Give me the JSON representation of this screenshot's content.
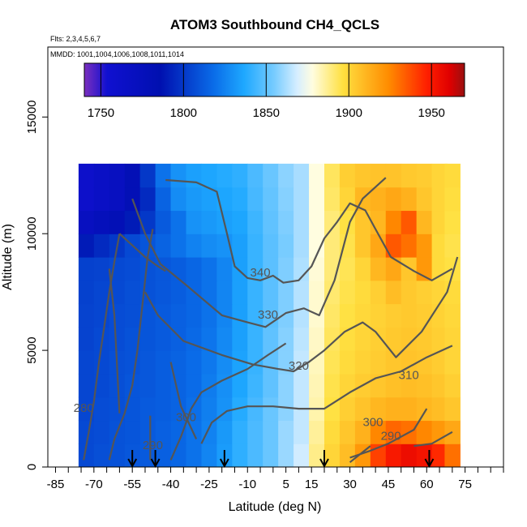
{
  "chart_data": {
    "type": "heatmap",
    "title": "ATOM3 Southbound CH4_QCLS",
    "flights_note": "Flts: 2,3,4,5,6,7",
    "dates_note": "MMDD: 1001,1004,1006,1008,1011,1014",
    "xlabel": "Latitude (deg N)",
    "ylabel": "Altitude (m)",
    "xlim": [
      -88,
      90
    ],
    "ylim": [
      0,
      18000
    ],
    "x_ticks": [
      -85,
      -70,
      -55,
      -40,
      -25,
      -10,
      5,
      15,
      30,
      45,
      60,
      75
    ],
    "y_ticks": [
      0,
      5000,
      10000,
      15000
    ],
    "colorbar": {
      "range": [
        1740,
        1970
      ],
      "ticks": [
        1750,
        1800,
        1850,
        1900,
        1950
      ]
    },
    "field": {
      "lat_bins": [
        -73,
        -67,
        -61,
        -55,
        -49,
        -43,
        -37,
        -31,
        -25,
        -19,
        -13,
        -7,
        -1,
        5,
        11,
        17,
        23,
        29,
        35,
        41,
        47,
        53,
        59,
        65,
        70
      ],
      "alt_bins": [
        500,
        1500,
        2500,
        3500,
        4500,
        5500,
        6500,
        7500,
        8500,
        9500,
        10500,
        11500,
        12500
      ],
      "values": [
        [
          1806,
          1808,
          1809,
          1811,
          1812,
          1814,
          1816,
          1820,
          1826,
          1833,
          1840,
          1846,
          1852,
          1860,
          1868,
          1888,
          1900,
          1908,
          1920,
          1940,
          1950,
          1955,
          1952,
          1945,
          1930
        ],
        [
          1806,
          1807,
          1809,
          1810,
          1812,
          1814,
          1816,
          1820,
          1825,
          1832,
          1840,
          1846,
          1852,
          1860,
          1866,
          1886,
          1898,
          1905,
          1912,
          1925,
          1932,
          1930,
          1925,
          1920,
          1915
        ],
        [
          1805,
          1807,
          1808,
          1810,
          1812,
          1813,
          1815,
          1819,
          1824,
          1830,
          1838,
          1845,
          1852,
          1858,
          1866,
          1884,
          1896,
          1902,
          1906,
          1910,
          1912,
          1912,
          1910,
          1908,
          1905
        ],
        [
          1805,
          1806,
          1808,
          1810,
          1811,
          1813,
          1815,
          1818,
          1823,
          1829,
          1836,
          1843,
          1850,
          1858,
          1866,
          1883,
          1895,
          1900,
          1903,
          1905,
          1907,
          1908,
          1907,
          1905,
          1902
        ],
        [
          1805,
          1806,
          1808,
          1809,
          1811,
          1813,
          1815,
          1818,
          1822,
          1828,
          1835,
          1842,
          1850,
          1857,
          1866,
          1882,
          1894,
          1898,
          1901,
          1903,
          1905,
          1906,
          1905,
          1903,
          1900
        ],
        [
          1804,
          1806,
          1807,
          1809,
          1810,
          1812,
          1814,
          1817,
          1821,
          1827,
          1834,
          1842,
          1850,
          1857,
          1865,
          1881,
          1893,
          1897,
          1900,
          1902,
          1904,
          1905,
          1904,
          1902,
          1900
        ],
        [
          1804,
          1805,
          1807,
          1808,
          1810,
          1812,
          1814,
          1816,
          1820,
          1826,
          1834,
          1842,
          1849,
          1856,
          1864,
          1880,
          1892,
          1896,
          1899,
          1901,
          1903,
          1904,
          1903,
          1901,
          1899
        ],
        [
          1803,
          1805,
          1806,
          1808,
          1809,
          1811,
          1813,
          1816,
          1820,
          1826,
          1834,
          1842,
          1849,
          1856,
          1864,
          1880,
          1891,
          1895,
          1898,
          1902,
          1908,
          1904,
          1902,
          1900,
          1898
        ],
        [
          1803,
          1804,
          1806,
          1807,
          1809,
          1811,
          1813,
          1816,
          1820,
          1826,
          1834,
          1842,
          1849,
          1856,
          1863,
          1879,
          1890,
          1894,
          1900,
          1910,
          1915,
          1905,
          1920,
          1898,
          1896
        ],
        [
          1790,
          1795,
          1800,
          1806,
          1810,
          1815,
          1820,
          1825,
          1828,
          1830,
          1834,
          1842,
          1849,
          1855,
          1862,
          1878,
          1890,
          1895,
          1905,
          1915,
          1935,
          1930,
          1920,
          1898,
          1895
        ],
        [
          1770,
          1775,
          1780,
          1790,
          1800,
          1812,
          1820,
          1830,
          1832,
          1834,
          1836,
          1843,
          1850,
          1856,
          1862,
          1878,
          1890,
          1896,
          1905,
          1910,
          1925,
          1935,
          1910,
          1900,
          1896
        ],
        [
          1760,
          1765,
          1770,
          1780,
          1795,
          1815,
          1828,
          1832,
          1834,
          1836,
          1838,
          1845,
          1851,
          1857,
          1862,
          1878,
          1892,
          1900,
          1910,
          1912,
          1915,
          1912,
          1905,
          1900,
          1897
        ],
        [
          1760,
          1765,
          1770,
          1780,
          1800,
          1820,
          1830,
          1834,
          1836,
          1838,
          1840,
          1846,
          1852,
          1858,
          1862,
          1878,
          1893,
          1902,
          1905,
          1906,
          1906,
          1904,
          1903,
          1900,
          1898
        ]
      ]
    },
    "contours": [
      {
        "label": "280",
        "label_lat": -74,
        "label_alt": 2500
      },
      {
        "label": "290",
        "label_lat": -47,
        "label_alt": 900
      },
      {
        "label": "290",
        "label_lat": 46,
        "label_alt": 1300
      },
      {
        "label": "300",
        "label_lat": -34,
        "label_alt": 2100
      },
      {
        "label": "300",
        "label_lat": 39,
        "label_alt": 1900
      },
      {
        "label": "310",
        "label_lat": 53,
        "label_alt": 3900
      },
      {
        "label": "320",
        "label_lat": 10,
        "label_alt": 4300
      },
      {
        "label": "330",
        "label_lat": -2,
        "label_alt": 6500
      },
      {
        "label": "340",
        "label_lat": -5,
        "label_alt": 8300
      }
    ],
    "profile_markers_lat": [
      -55,
      -46,
      -19,
      20,
      61
    ]
  }
}
